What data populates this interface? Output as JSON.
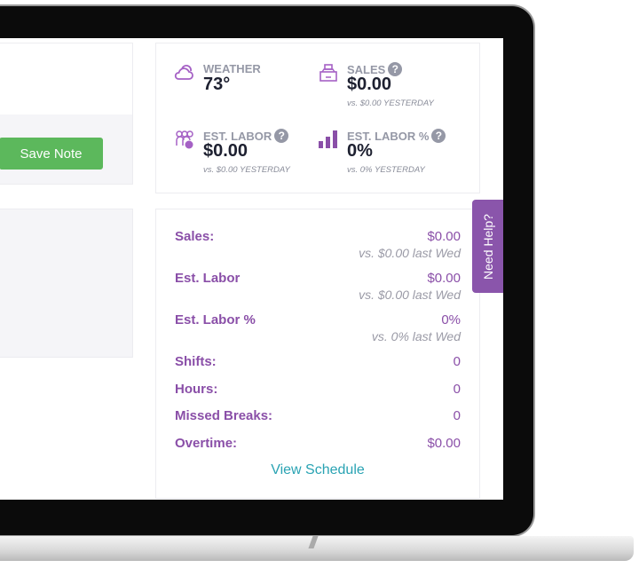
{
  "notes": {
    "save_label": "Save Note"
  },
  "stats": [
    {
      "icon": "cloud-icon",
      "label": "WEATHER",
      "value": "73°",
      "sub": ""
    },
    {
      "icon": "cash-register-icon",
      "label": "SALES",
      "value": "$0.00",
      "sub": "vs. $0.00 YESTERDAY",
      "help": "?"
    },
    {
      "icon": "people-icon",
      "label": "EST. LABOR",
      "value": "$0.00",
      "sub": "vs. $0.00 YESTERDAY",
      "help": "?"
    },
    {
      "icon": "bar-chart-icon",
      "label": "EST. LABOR %",
      "value": "0%",
      "sub": "vs. 0% YESTERDAY",
      "help": "?"
    }
  ],
  "summary": [
    {
      "label": "Sales:",
      "value": "$0.00",
      "compare": "vs. $0.00 last Wed"
    },
    {
      "label": "Est. Labor",
      "value": "$0.00",
      "compare": "vs. $0.00 last Wed"
    },
    {
      "label": "Est. Labor %",
      "value": "0%",
      "compare": "vs. 0% last Wed"
    },
    {
      "label": "Shifts:",
      "value": "0"
    },
    {
      "label": "Hours:",
      "value": "0"
    },
    {
      "label": "Missed Breaks:",
      "value": "0"
    },
    {
      "label": "Overtime:",
      "value": "$0.00"
    }
  ],
  "view_schedule": "View Schedule",
  "need_help": "Need Help?",
  "colors": {
    "accent": "#8a4fa8",
    "save": "#5cb85c",
    "link": "#2aa3b3"
  }
}
